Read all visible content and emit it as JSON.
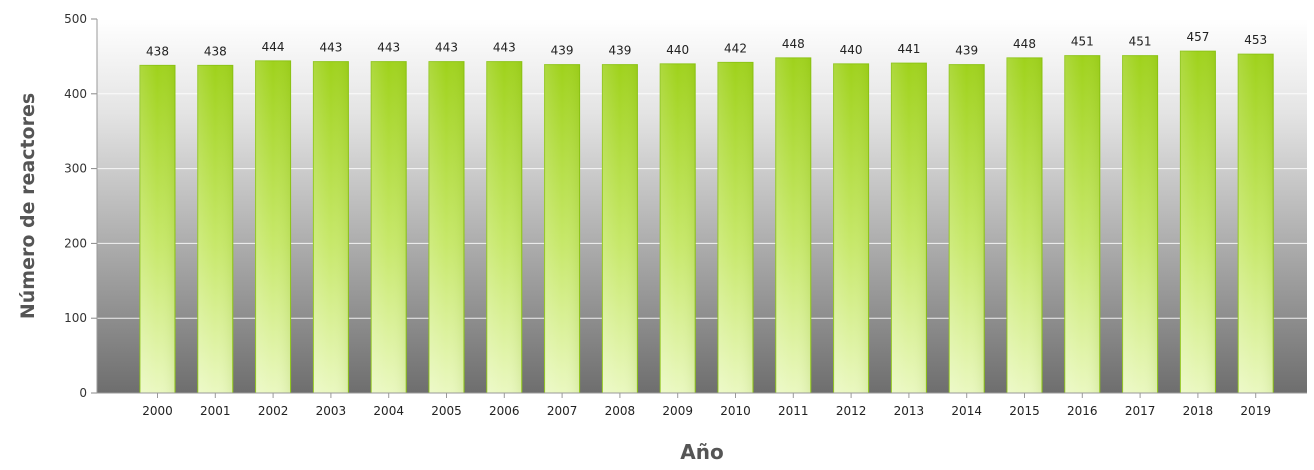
{
  "chart_data": {
    "type": "bar",
    "title": "",
    "xlabel": "Año",
    "ylabel": "Número de reactores",
    "categories": [
      "2000",
      "2001",
      "2002",
      "2003",
      "2004",
      "2005",
      "2006",
      "2007",
      "2008",
      "2009",
      "2010",
      "2011",
      "2012",
      "2013",
      "2014",
      "2015",
      "2016",
      "2017",
      "2018",
      "2019"
    ],
    "values": [
      438,
      438,
      444,
      443,
      443,
      443,
      443,
      439,
      439,
      440,
      442,
      448,
      440,
      441,
      439,
      448,
      451,
      451,
      457,
      453
    ],
    "ylim": [
      0,
      500
    ],
    "yticks": [
      0,
      100,
      200,
      300,
      400,
      500
    ],
    "grid": true,
    "legend": "none",
    "colors": {
      "bar_top": "#9fd21b",
      "bar_light": "#eaf8c0",
      "bar_stroke": "#8cc414",
      "bg_top": "#ffffff",
      "bg_bottom": "#6e6e6e"
    }
  }
}
